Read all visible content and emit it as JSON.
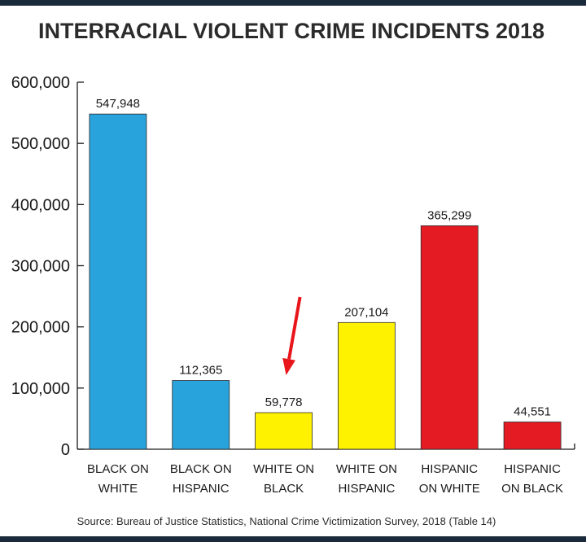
{
  "chart_data": {
    "type": "bar",
    "title": "INTERRACIAL VIOLENT CRIME INCIDENTS 2018",
    "categories": [
      [
        "BLACK ON",
        "WHITE"
      ],
      [
        "BLACK ON",
        "HISPANIC"
      ],
      [
        "WHITE ON",
        "BLACK"
      ],
      [
        "WHITE ON",
        "HISPANIC"
      ],
      [
        "HISPANIC",
        "ON WHITE"
      ],
      [
        "HISPANIC",
        "ON BLACK"
      ]
    ],
    "values": [
      547948,
      112365,
      59778,
      207104,
      365299,
      44551
    ],
    "value_labels": [
      "547,948",
      "112,365",
      "59,778",
      "207,104",
      "365,299",
      "44,551"
    ],
    "bar_colors": [
      "#29a3dc",
      "#29a3dc",
      "#fff200",
      "#fff200",
      "#e51b24",
      "#e51b24"
    ],
    "yticks": [
      0,
      100000,
      200000,
      300000,
      400000,
      500000,
      600000
    ],
    "ytick_labels": [
      "0",
      "100,000",
      "200,000",
      "300,000",
      "400,000",
      "500,000",
      "600,000"
    ],
    "ylim": [
      0,
      600000
    ],
    "grid": false,
    "legend": "none",
    "annotation": {
      "type": "arrow",
      "color": "#e8161b",
      "points_to_category_index": 2
    },
    "source": "Source: Bureau of Justice Statistics, National Crime Victimization Survey, 2018 (Table 14)"
  }
}
